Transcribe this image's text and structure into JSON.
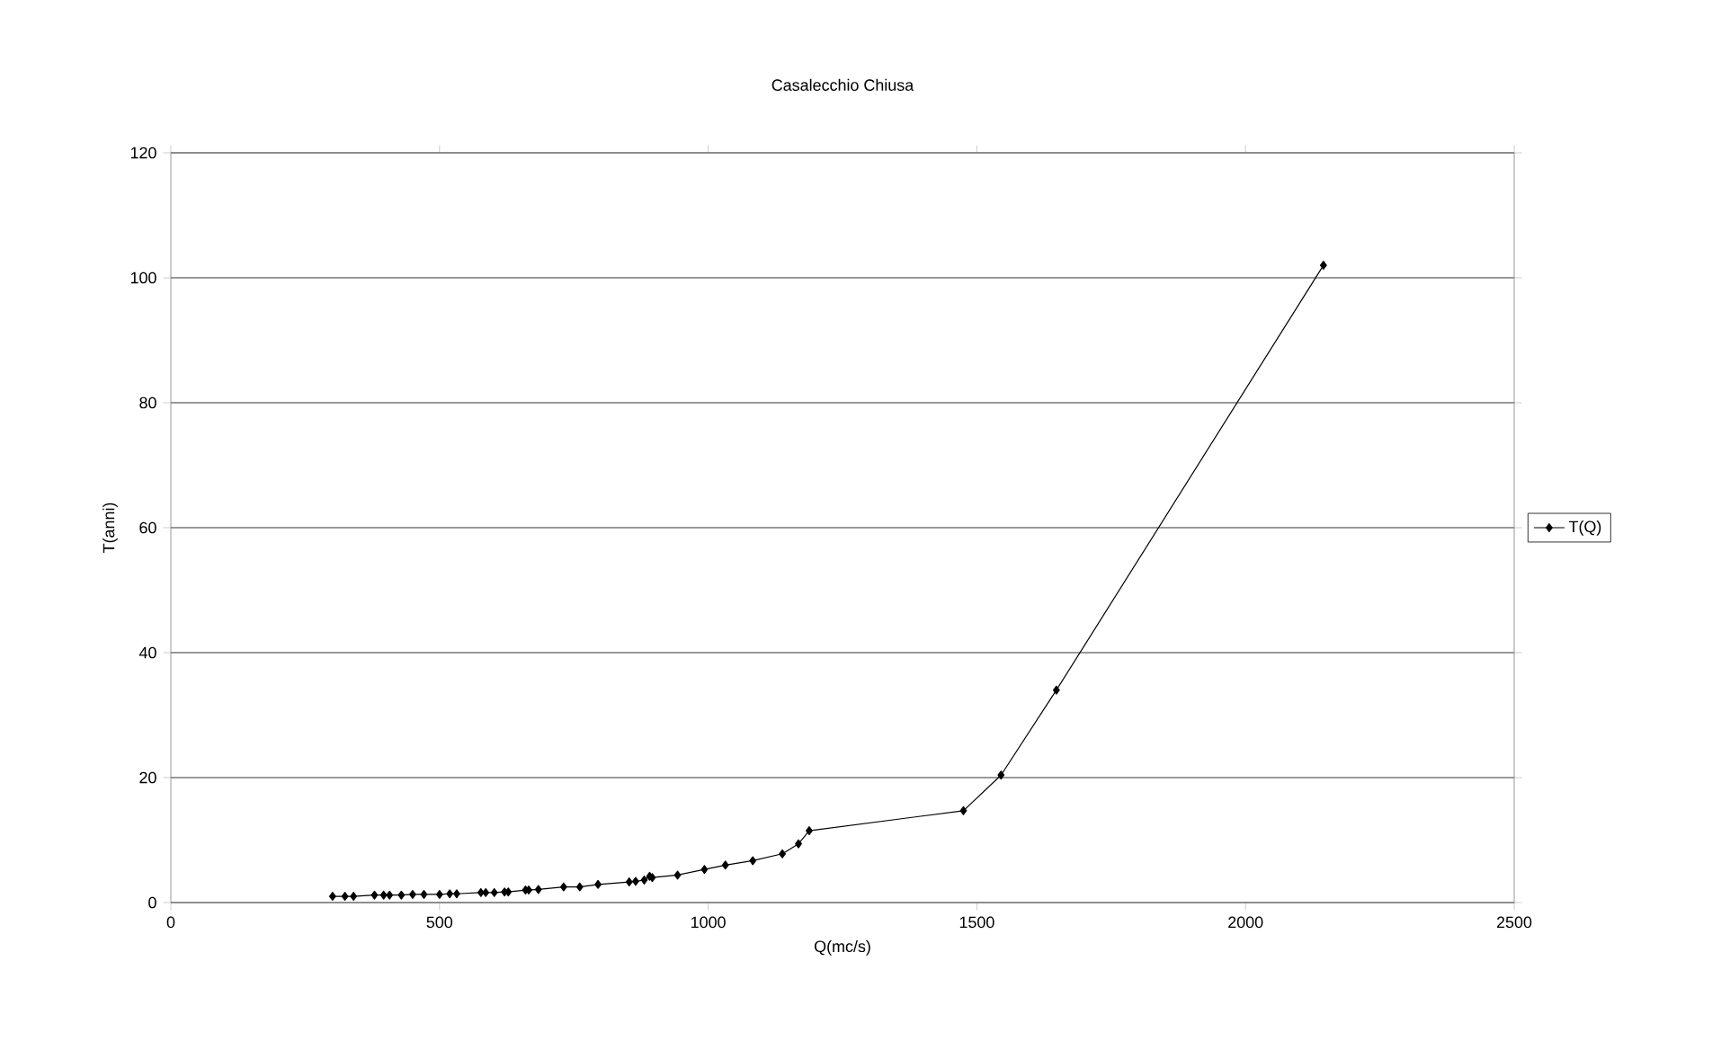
{
  "chart_data": {
    "type": "line",
    "title": "Casalecchio Chiusa",
    "xlabel": "Q(mc/s)",
    "ylabel": "T(anni)",
    "xlim": [
      0,
      2500
    ],
    "xticks": [
      0,
      500,
      1000,
      1500,
      2000,
      2500
    ],
    "ylim": [
      0,
      120
    ],
    "yticks": [
      0,
      20,
      40,
      60,
      80,
      100,
      120
    ],
    "grid": "y",
    "legend": "right",
    "marker": "diamond",
    "line_style": "solid",
    "series": [
      {
        "name": "T(Q)",
        "color": "#000000",
        "x": [
          301,
          324,
          340,
          379,
          396,
          407,
          429,
          450,
          471,
          500,
          519,
          532,
          577,
          586,
          602,
          621,
          628,
          660,
          666,
          684,
          731,
          761,
          795,
          853,
          865,
          881,
          891,
          896,
          943,
          991,
          993,
          1032,
          1083,
          1138,
          1168,
          1188,
          1475,
          1545,
          1648,
          2145
        ],
        "values": [
          1.0,
          1.0,
          1.0,
          1.2,
          1.2,
          1.2,
          1.2,
          1.3,
          1.3,
          1.3,
          1.4,
          1.4,
          1.6,
          1.6,
          1.6,
          1.7,
          1.7,
          2.0,
          2.0,
          2.1,
          2.5,
          2.5,
          2.9,
          3.3,
          3.4,
          3.6,
          4.2,
          4.0,
          4.4,
          null,
          5.3,
          6.0,
          6.7,
          7.8,
          9.4,
          11.5,
          14.7,
          20.4,
          34,
          102
        ]
      }
    ]
  }
}
